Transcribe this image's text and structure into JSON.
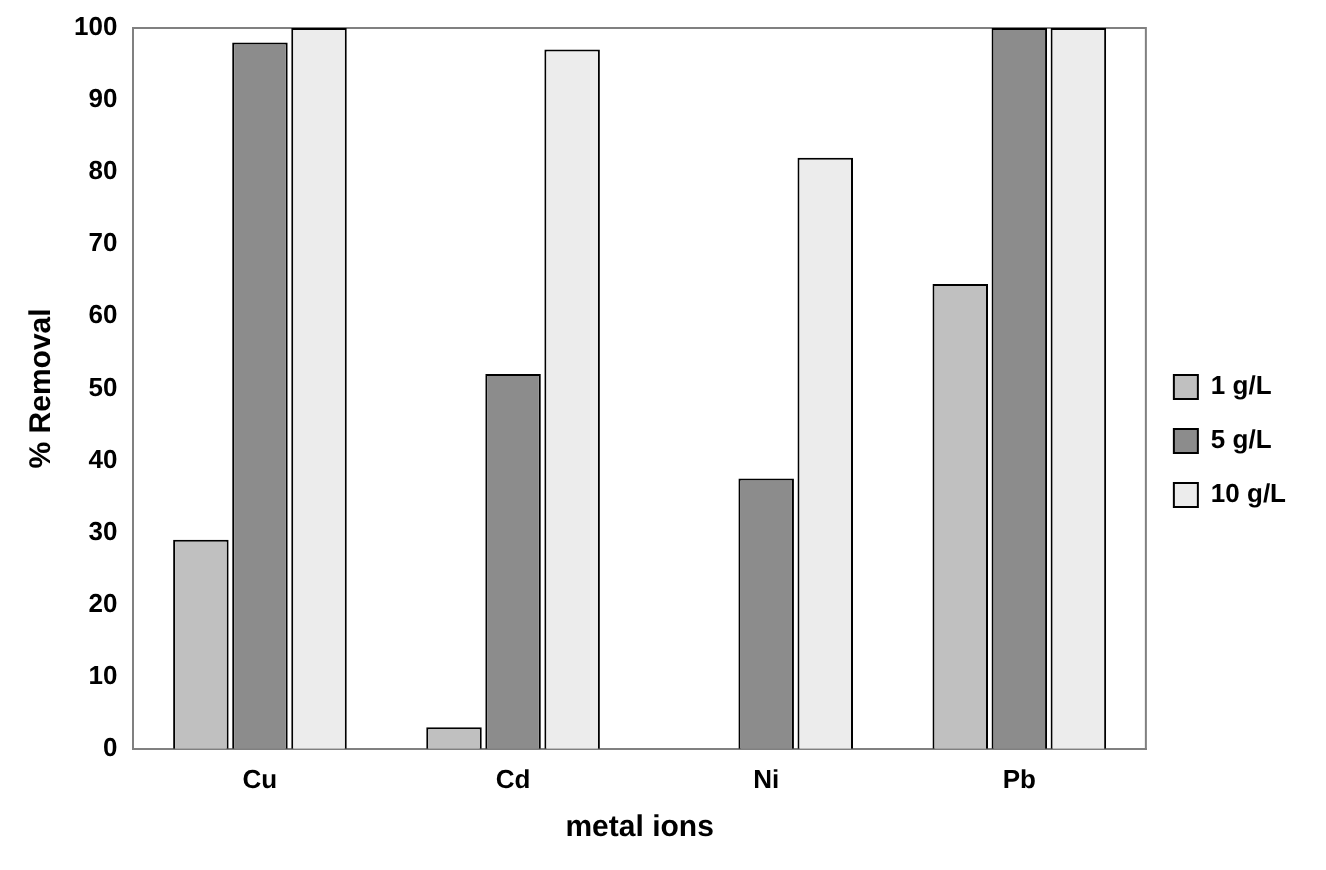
{
  "chart_data": {
    "type": "bar",
    "xlabel": "metal ions",
    "ylabel": "% Removal",
    "categories": [
      "Cu",
      "Cd",
      "Ni",
      "Pb"
    ],
    "series": [
      {
        "name": "1 g/L",
        "color": "#c0c0c0",
        "values": [
          29,
          3,
          0,
          64.5
        ]
      },
      {
        "name": "5 g/L",
        "color": "#8c8c8c",
        "values": [
          98,
          52,
          37.5,
          100
        ]
      },
      {
        "name": "10 g/L",
        "color": "#ececec",
        "values": [
          100,
          97,
          82,
          100
        ]
      }
    ],
    "ylim": [
      0,
      100
    ],
    "yticks": [
      0,
      10,
      20,
      30,
      40,
      50,
      60,
      70,
      80,
      90,
      100
    ],
    "grid": false,
    "legend": "right"
  }
}
